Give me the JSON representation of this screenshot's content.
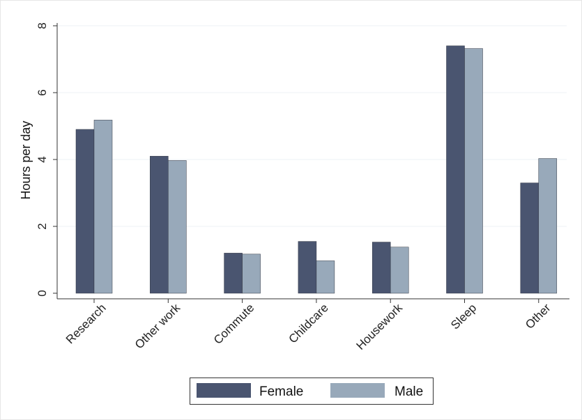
{
  "chart_data": {
    "type": "bar",
    "categories": [
      "Research",
      "Other work",
      "Commute",
      "Childcare",
      "Housework",
      "Sleep",
      "Other"
    ],
    "series": [
      {
        "name": "Female",
        "values": [
          4.9,
          4.1,
          1.2,
          1.55,
          1.53,
          7.4,
          3.3
        ],
        "color": "#4a5570"
      },
      {
        "name": "Male",
        "values": [
          5.18,
          3.97,
          1.17,
          0.97,
          1.38,
          7.32,
          4.03
        ],
        "color": "#98a9ba"
      }
    ],
    "title": "",
    "xlabel": "",
    "ylabel": "Hours per day",
    "ylim": [
      0,
      8
    ],
    "yticks": [
      0,
      2,
      4,
      6,
      8
    ],
    "grid": true,
    "legend_position": "bottom"
  }
}
